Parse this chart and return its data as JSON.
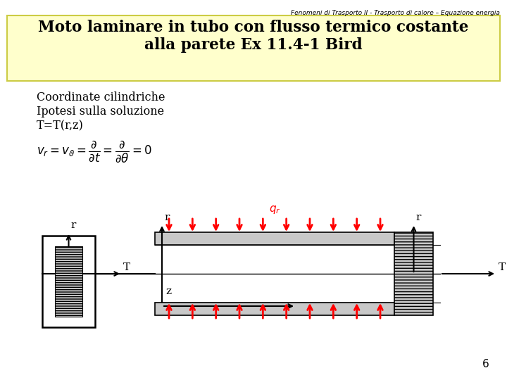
{
  "header_text": "Fenomeni di Trasporto II - Trasporto di calore – Equazione energia",
  "title_text": "Moto laminare in tubo con flusso termico costante\nalla parete Ex 11.4-1 Bird",
  "title_bg": "#ffffcc",
  "body_bg": "#ffffff",
  "text1": "Coordinate cilindriche",
  "text2": "Ipotesi sulla soluzione",
  "text3": "T=T(r,z)",
  "page_number": "6"
}
